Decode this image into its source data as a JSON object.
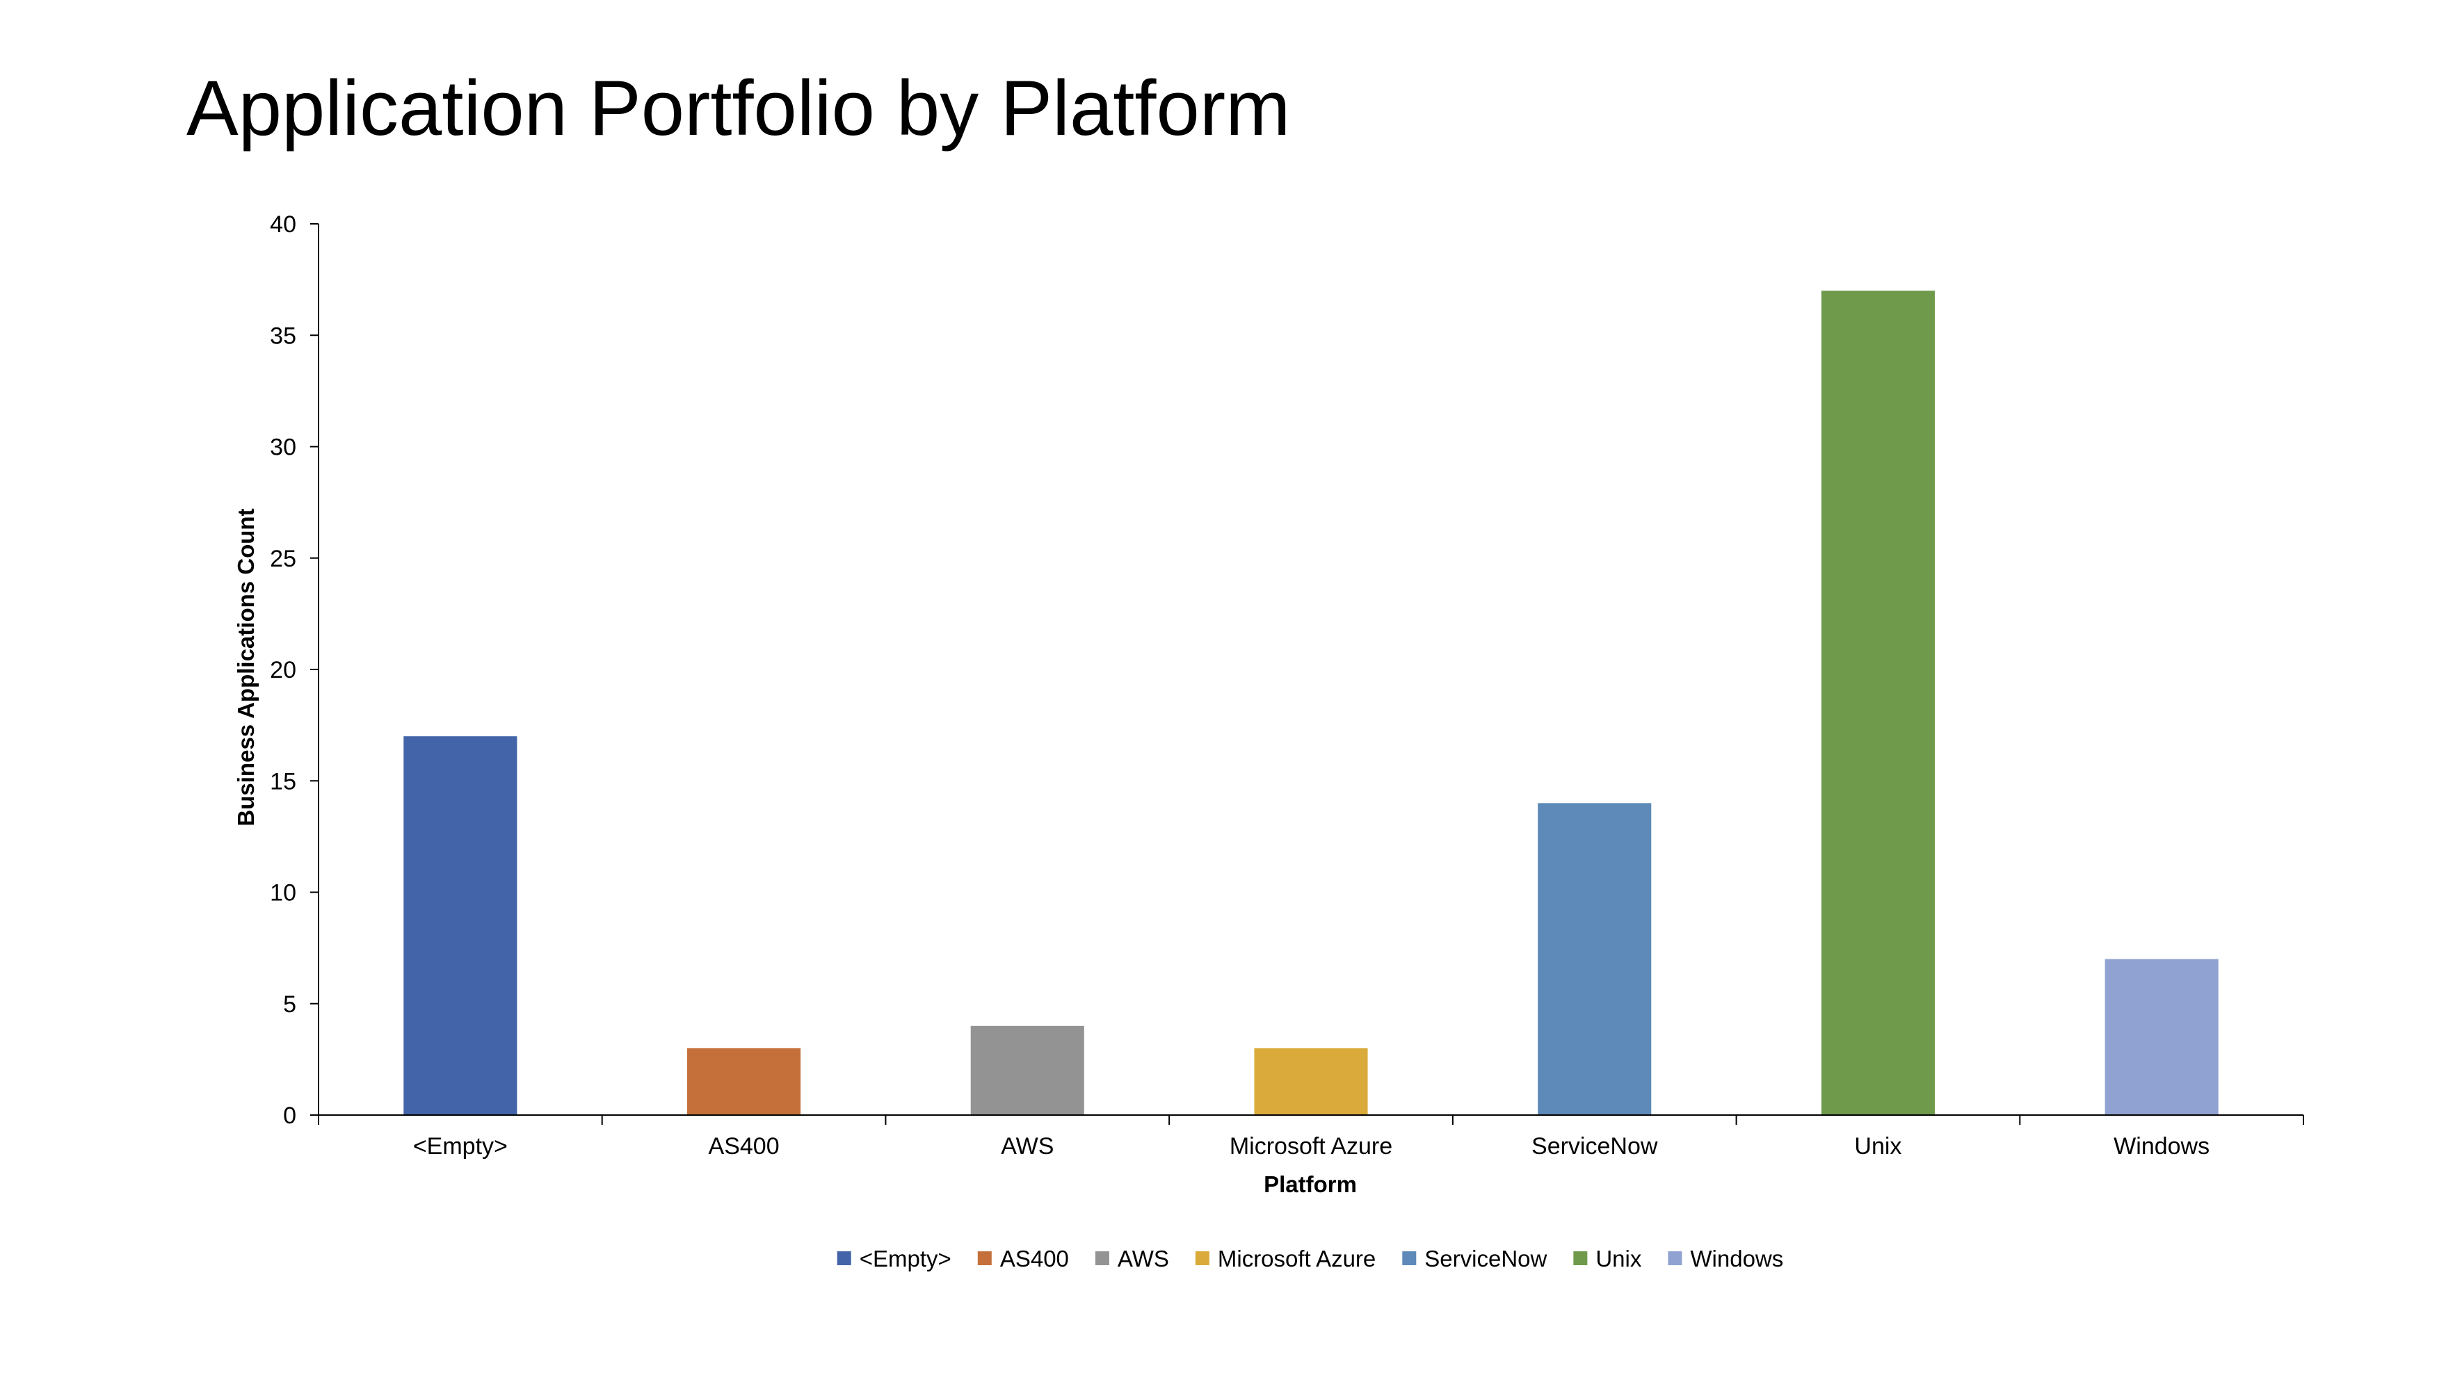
{
  "slide": {
    "title": "Application Portfolio by Platform"
  },
  "chart_data": {
    "type": "bar",
    "xlabel": "Platform",
    "ylabel": "Business Applications Count",
    "ylim": [
      0,
      40
    ],
    "yticks": [
      0,
      5,
      10,
      15,
      20,
      25,
      30,
      35,
      40
    ],
    "grid": false,
    "legend_position": "bottom",
    "categories": [
      "<Empty>",
      "AS400",
      "AWS",
      "Microsoft Azure",
      "ServiceNow",
      "Unix",
      "Windows"
    ],
    "values": [
      17,
      3,
      4,
      3,
      14,
      37,
      7
    ],
    "colors": [
      "#4364A8",
      "#C5703A",
      "#939393",
      "#DAAA3A",
      "#5E8AB9",
      "#6F9A4B",
      "#90A2D1"
    ]
  }
}
